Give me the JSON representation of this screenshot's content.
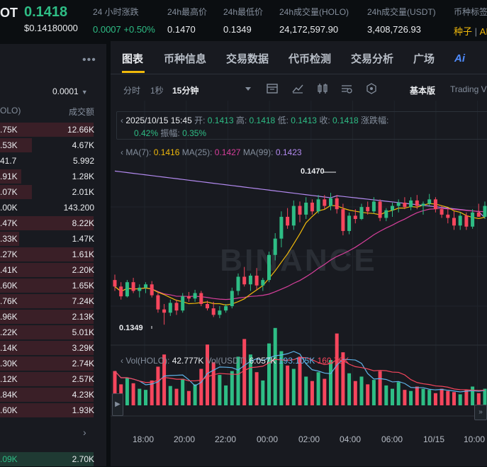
{
  "header": {
    "symbol_fragment": "OT",
    "price": "0.1418",
    "price_usd": "$0.14180000",
    "stats": [
      {
        "label": "24 小时涨跌",
        "value_a": "0.0007",
        "value_b": "+0.50%"
      },
      {
        "label": "24h最高价",
        "value": "0.1470"
      },
      {
        "label": "24h最低价",
        "value": "0.1349"
      },
      {
        "label": "24h成交量(HOLO)",
        "value": "24,172,597.90"
      },
      {
        "label": "24h成交量(USDT)",
        "value": "3,408,726.93"
      },
      {
        "label": "币种标签",
        "value_a": "种子",
        "value_b": "AI"
      }
    ]
  },
  "orderbook": {
    "menu_icon": "more-dots-icon",
    "precision": "0.0001",
    "col_amount": "OLO)",
    "col_total": "成交额",
    "asks": [
      {
        "p": ".75K",
        "q": "12.66K",
        "depth": 0.88
      },
      {
        "p": ".53K",
        "q": "4.67K",
        "depth": 0.3
      },
      {
        "p": "41.7",
        "q": "5.992",
        "depth": 0.0
      },
      {
        "p": ".91K",
        "q": "1.28K",
        "depth": 0.2
      },
      {
        "p": ".07K",
        "q": "2.01K",
        "depth": 0.3
      },
      {
        "p": ".00K",
        "q": "143.200",
        "depth": 0.0
      },
      {
        "p": ".47K",
        "q": "8.22K",
        "depth": 0.88
      },
      {
        "p": ".33K",
        "q": "1.47K",
        "depth": 0.18
      },
      {
        "p": ".27K",
        "q": "1.61K",
        "depth": 0.88
      },
      {
        "p": ".41K",
        "q": "2.20K",
        "depth": 0.88
      },
      {
        "p": ".60K",
        "q": "1.65K",
        "depth": 0.88
      },
      {
        "p": ".76K",
        "q": "7.24K",
        "depth": 0.88
      },
      {
        "p": ".96K",
        "q": "2.13K",
        "depth": 0.88
      },
      {
        "p": ".22K",
        "q": "5.01K",
        "depth": 0.88
      },
      {
        "p": ".14K",
        "q": "3.29K",
        "depth": 0.88
      },
      {
        "p": ".30K",
        "q": "2.74K",
        "depth": 0.88
      },
      {
        "p": ".12K",
        "q": "2.57K",
        "depth": 0.88
      },
      {
        "p": ".84K",
        "q": "4.23K",
        "depth": 0.88
      },
      {
        "p": ".60K",
        "q": "1.93K",
        "depth": 0.88
      }
    ],
    "bid_row": {
      "p": ".09K",
      "q": "2.70K",
      "depth": 0.88
    }
  },
  "tabs": [
    "图表",
    "币种信息",
    "交易数据",
    "代币检测",
    "交易分析",
    "广场"
  ],
  "toolbar": {
    "intervals": [
      "分时",
      "1秒",
      "15分钟"
    ],
    "basic": "基本版",
    "tradingview": "Trading V"
  },
  "ohlc": {
    "time": "2025/10/15 15:45",
    "open_label": "开:",
    "open": "0.1413",
    "high_label": "高:",
    "high": "0.1418",
    "low_label": "低:",
    "low": "0.1413",
    "close_label": "收:",
    "close": "0.1418",
    "chg_label": "涨跌幅:",
    "chg": "0.42%",
    "amp_label": "振幅:",
    "amp": "0.35%"
  },
  "ma": {
    "ma7_label": "MA(7):",
    "ma7": "0.1416",
    "ma25_label": "MA(25):",
    "ma25": "0.1427",
    "ma99_label": "MA(99):",
    "ma99": "0.1423"
  },
  "volume": {
    "vol_holo_label": "Vol(HOLO):",
    "vol_holo": "42.777K",
    "vol_usdt_label": "Vol(USDT)",
    "vol_usdt": "6.057K",
    "ma1": "193.105K",
    "ma2": "160.78K"
  },
  "watermark": "BINANCE",
  "colors": {
    "up": "#2ebd85",
    "down": "#f6465d",
    "ma7": "#f0b90b",
    "ma25": "#d63f9b",
    "ma99": "#b38af0"
  },
  "chart_data": {
    "type": "candlestick",
    "x_tick_labels": [
      "18:00",
      "20:00",
      "22:00",
      "00:00",
      "02:00",
      "04:00",
      "06:00",
      "10/15",
      "10:00"
    ],
    "marked_high": "0.1470",
    "marked_low": "0.1349",
    "candles": [
      {
        "o": 0.139,
        "h": 0.1395,
        "l": 0.138,
        "c": 0.1384
      },
      {
        "o": 0.1384,
        "h": 0.1388,
        "l": 0.1372,
        "c": 0.1375
      },
      {
        "o": 0.1375,
        "h": 0.139,
        "l": 0.1374,
        "c": 0.1388
      },
      {
        "o": 0.1388,
        "h": 0.1392,
        "l": 0.1378,
        "c": 0.138
      },
      {
        "o": 0.138,
        "h": 0.1386,
        "l": 0.1374,
        "c": 0.1383
      },
      {
        "o": 0.1383,
        "h": 0.1388,
        "l": 0.1378,
        "c": 0.1386
      },
      {
        "o": 0.1386,
        "h": 0.1389,
        "l": 0.1374,
        "c": 0.1376
      },
      {
        "o": 0.1376,
        "h": 0.1378,
        "l": 0.136,
        "c": 0.1363
      },
      {
        "o": 0.1363,
        "h": 0.1368,
        "l": 0.1349,
        "c": 0.136
      },
      {
        "o": 0.136,
        "h": 0.1372,
        "l": 0.1357,
        "c": 0.1369
      },
      {
        "o": 0.1369,
        "h": 0.1372,
        "l": 0.1358,
        "c": 0.1362
      },
      {
        "o": 0.1362,
        "h": 0.1378,
        "l": 0.136,
        "c": 0.1375
      },
      {
        "o": 0.1375,
        "h": 0.1379,
        "l": 0.137,
        "c": 0.1373
      },
      {
        "o": 0.1373,
        "h": 0.1381,
        "l": 0.137,
        "c": 0.1378
      },
      {
        "o": 0.1378,
        "h": 0.138,
        "l": 0.1366,
        "c": 0.1368
      },
      {
        "o": 0.1368,
        "h": 0.1371,
        "l": 0.1362,
        "c": 0.1364
      },
      {
        "o": 0.1364,
        "h": 0.137,
        "l": 0.1356,
        "c": 0.1358
      },
      {
        "o": 0.1358,
        "h": 0.1366,
        "l": 0.1355,
        "c": 0.1362
      },
      {
        "o": 0.1362,
        "h": 0.1368,
        "l": 0.136,
        "c": 0.1366
      },
      {
        "o": 0.1366,
        "h": 0.1383,
        "l": 0.1364,
        "c": 0.138
      },
      {
        "o": 0.138,
        "h": 0.1396,
        "l": 0.1376,
        "c": 0.1393
      },
      {
        "o": 0.1393,
        "h": 0.1402,
        "l": 0.1384,
        "c": 0.1386
      },
      {
        "o": 0.1386,
        "h": 0.1396,
        "l": 0.138,
        "c": 0.1394
      },
      {
        "o": 0.1394,
        "h": 0.1401,
        "l": 0.1381,
        "c": 0.1385
      },
      {
        "o": 0.1385,
        "h": 0.1392,
        "l": 0.138,
        "c": 0.139
      },
      {
        "o": 0.139,
        "h": 0.1416,
        "l": 0.1388,
        "c": 0.1413
      },
      {
        "o": 0.1413,
        "h": 0.1433,
        "l": 0.1408,
        "c": 0.1428
      },
      {
        "o": 0.1428,
        "h": 0.1453,
        "l": 0.142,
        "c": 0.1448
      },
      {
        "o": 0.1448,
        "h": 0.1456,
        "l": 0.1437,
        "c": 0.144
      },
      {
        "o": 0.144,
        "h": 0.1463,
        "l": 0.1436,
        "c": 0.1458
      },
      {
        "o": 0.1458,
        "h": 0.1462,
        "l": 0.1443,
        "c": 0.145
      },
      {
        "o": 0.145,
        "h": 0.1466,
        "l": 0.1446,
        "c": 0.1461
      },
      {
        "o": 0.1461,
        "h": 0.1464,
        "l": 0.145,
        "c": 0.1453
      },
      {
        "o": 0.1453,
        "h": 0.1468,
        "l": 0.1451,
        "c": 0.1464
      },
      {
        "o": 0.1464,
        "h": 0.1468,
        "l": 0.1455,
        "c": 0.1458
      },
      {
        "o": 0.1458,
        "h": 0.147,
        "l": 0.1454,
        "c": 0.1465
      },
      {
        "o": 0.1465,
        "h": 0.1468,
        "l": 0.1451,
        "c": 0.1455
      },
      {
        "o": 0.1455,
        "h": 0.146,
        "l": 0.1431,
        "c": 0.1435
      },
      {
        "o": 0.1435,
        "h": 0.1452,
        "l": 0.1432,
        "c": 0.1449
      },
      {
        "o": 0.1449,
        "h": 0.1455,
        "l": 0.1442,
        "c": 0.1446
      },
      {
        "o": 0.1446,
        "h": 0.146,
        "l": 0.1445,
        "c": 0.1457
      },
      {
        "o": 0.1457,
        "h": 0.1462,
        "l": 0.145,
        "c": 0.1453
      },
      {
        "o": 0.1453,
        "h": 0.1466,
        "l": 0.1451,
        "c": 0.1462
      },
      {
        "o": 0.1462,
        "h": 0.1464,
        "l": 0.1444,
        "c": 0.1447
      },
      {
        "o": 0.1447,
        "h": 0.1456,
        "l": 0.1444,
        "c": 0.1454
      },
      {
        "o": 0.1454,
        "h": 0.1461,
        "l": 0.1448,
        "c": 0.1458
      },
      {
        "o": 0.1458,
        "h": 0.1464,
        "l": 0.1452,
        "c": 0.1461
      },
      {
        "o": 0.1461,
        "h": 0.1466,
        "l": 0.1455,
        "c": 0.1457
      },
      {
        "o": 0.1457,
        "h": 0.1466,
        "l": 0.1454,
        "c": 0.1463
      },
      {
        "o": 0.1463,
        "h": 0.1468,
        "l": 0.1455,
        "c": 0.1458
      },
      {
        "o": 0.1458,
        "h": 0.1462,
        "l": 0.145,
        "c": 0.146
      },
      {
        "o": 0.146,
        "h": 0.1469,
        "l": 0.1458,
        "c": 0.1464
      },
      {
        "o": 0.1464,
        "h": 0.1466,
        "l": 0.1452,
        "c": 0.1455
      },
      {
        "o": 0.1455,
        "h": 0.1458,
        "l": 0.1447,
        "c": 0.145
      },
      {
        "o": 0.145,
        "h": 0.1455,
        "l": 0.1442,
        "c": 0.1447
      },
      {
        "o": 0.1447,
        "h": 0.1453,
        "l": 0.1436,
        "c": 0.144
      },
      {
        "o": 0.144,
        "h": 0.1452,
        "l": 0.1436,
        "c": 0.1449
      },
      {
        "o": 0.1449,
        "h": 0.1452,
        "l": 0.1436,
        "c": 0.1439
      },
      {
        "o": 0.1439,
        "h": 0.1455,
        "l": 0.1437,
        "c": 0.1452
      },
      {
        "o": 0.1452,
        "h": 0.146,
        "l": 0.1448,
        "c": 0.1448
      },
      {
        "o": 0.1448,
        "h": 0.1462,
        "l": 0.1446,
        "c": 0.1458
      }
    ],
    "volumes": [
      62,
      38,
      50,
      40,
      30,
      28,
      45,
      70,
      92,
      35,
      30,
      48,
      26,
      38,
      66,
      110,
      78,
      55,
      36,
      62,
      88,
      120,
      92,
      60,
      45,
      112,
      140,
      98,
      72,
      66,
      88,
      52,
      44,
      60,
      48,
      82,
      130,
      96,
      58,
      44,
      52,
      38,
      46,
      62,
      36,
      30,
      42,
      28,
      26,
      34,
      30,
      28,
      22,
      30,
      26,
      24,
      20,
      28,
      34,
      22,
      30
    ]
  }
}
